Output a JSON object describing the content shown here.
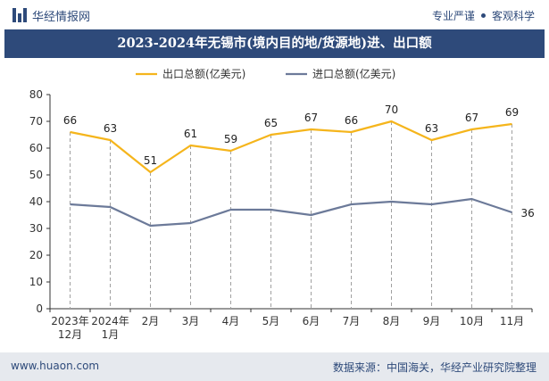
{
  "header": {
    "brand_name": "华经情报网",
    "tagline_left": "专业严谨",
    "tagline_right": "客观科学"
  },
  "footer": {
    "website": "www.huaon.com",
    "source": "数据来源：中国海关，华经产业研究院整理"
  },
  "colors": {
    "export": "#f5b51c",
    "import": "#6c7a99",
    "title_bg": "#2e4a7a"
  },
  "chart_data": {
    "type": "line",
    "title": "2023-2024年无锡市(境内目的地/货源地)进、出口额",
    "categories": [
      "2023年\n12月",
      "2024年\n1月",
      "2月",
      "3月",
      "4月",
      "5月",
      "6月",
      "7月",
      "8月",
      "9月",
      "10月",
      "11月"
    ],
    "series": [
      {
        "name": "出口总额(亿美元)",
        "values": [
          66,
          63,
          51,
          61,
          59,
          65,
          67,
          66,
          70,
          63,
          67,
          69
        ]
      },
      {
        "name": "进口总额(亿美元)",
        "values": [
          39,
          38,
          31,
          32,
          37,
          37,
          35,
          39,
          40,
          39,
          41,
          36
        ]
      }
    ],
    "labeled_import_points": [
      11
    ],
    "ylim": [
      0,
      80
    ],
    "yticks": [
      0,
      10,
      20,
      30,
      40,
      50,
      60,
      70,
      80
    ],
    "legend_position": "top-center",
    "drop_lines": true
  }
}
